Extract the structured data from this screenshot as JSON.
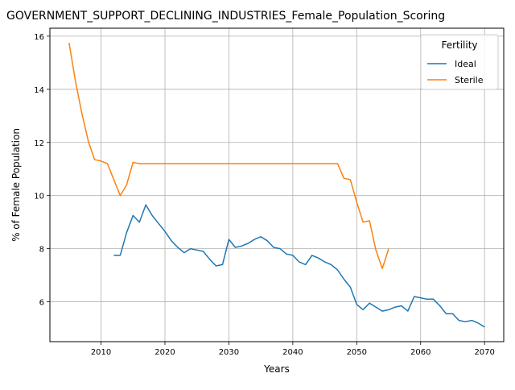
{
  "chart_data": {
    "type": "line",
    "title": "GOVERNMENT_SUPPORT_DECLINING_INDUSTRIES_Female_Population_Scoring",
    "xlabel": "Years",
    "ylabel": "% of Female Population",
    "xlim": [
      2002,
      2073
    ],
    "ylim": [
      4.5,
      16.3
    ],
    "xticks": [
      2010,
      2020,
      2030,
      2040,
      2050,
      2060,
      2070
    ],
    "yticks": [
      6,
      8,
      10,
      12,
      14,
      16
    ],
    "grid": true,
    "legend": {
      "title": "Fertility",
      "placement": "top-right"
    },
    "series": [
      {
        "name": "Ideal",
        "color": "#1f77b4",
        "x": [
          2012,
          2013,
          2014,
          2015,
          2016,
          2017,
          2018,
          2019,
          2020,
          2021,
          2022,
          2023,
          2024,
          2025,
          2026,
          2027,
          2028,
          2029,
          2030,
          2031,
          2032,
          2033,
          2034,
          2035,
          2036,
          2037,
          2038,
          2039,
          2040,
          2041,
          2042,
          2043,
          2044,
          2045,
          2046,
          2047,
          2048,
          2049,
          2050,
          2051,
          2052,
          2053,
          2054,
          2055,
          2056,
          2057,
          2058,
          2059,
          2060,
          2061,
          2062,
          2063,
          2064,
          2065,
          2066,
          2067,
          2068,
          2069,
          2070
        ],
        "y": [
          7.75,
          7.75,
          8.6,
          9.25,
          9.0,
          9.65,
          9.25,
          8.95,
          8.65,
          8.3,
          8.05,
          7.85,
          8.0,
          7.95,
          7.9,
          7.6,
          7.35,
          7.4,
          8.35,
          8.05,
          8.1,
          8.2,
          8.35,
          8.45,
          8.3,
          8.05,
          8.0,
          7.8,
          7.75,
          7.5,
          7.4,
          7.75,
          7.65,
          7.5,
          7.4,
          7.2,
          6.85,
          6.55,
          5.9,
          5.7,
          5.95,
          5.8,
          5.65,
          5.7,
          5.8,
          5.85,
          5.65,
          6.2,
          6.15,
          6.1,
          6.1,
          5.85,
          5.55,
          5.55,
          5.3,
          5.25,
          5.3,
          5.2,
          5.05
        ]
      },
      {
        "name": "Sterile",
        "color": "#ff7f0e",
        "x": [
          2005,
          2006,
          2007,
          2008,
          2009,
          2010,
          2011,
          2012,
          2013,
          2014,
          2015,
          2016,
          2017,
          2018,
          2019,
          2020,
          2021,
          2022,
          2023,
          2024,
          2025,
          2026,
          2027,
          2028,
          2029,
          2030,
          2031,
          2032,
          2033,
          2034,
          2035,
          2036,
          2037,
          2038,
          2039,
          2040,
          2041,
          2042,
          2043,
          2044,
          2045,
          2046,
          2047,
          2048,
          2049,
          2050,
          2051,
          2052,
          2053,
          2054,
          2055
        ],
        "y": [
          15.75,
          14.3,
          13.1,
          12.05,
          11.35,
          11.3,
          11.2,
          10.6,
          10.0,
          10.4,
          11.25,
          11.2,
          11.2,
          11.2,
          11.2,
          11.2,
          11.2,
          11.2,
          11.2,
          11.2,
          11.2,
          11.2,
          11.2,
          11.2,
          11.2,
          11.2,
          11.2,
          11.2,
          11.2,
          11.2,
          11.2,
          11.2,
          11.2,
          11.2,
          11.2,
          11.2,
          11.2,
          11.2,
          11.2,
          11.2,
          11.2,
          11.2,
          11.2,
          10.65,
          10.6,
          9.75,
          9.0,
          9.05,
          7.95,
          7.25,
          8.0
        ]
      }
    ]
  }
}
